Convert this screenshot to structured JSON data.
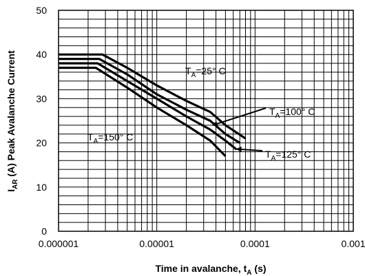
{
  "chart_data": {
    "type": "line",
    "xscale": "log",
    "xlim": [
      1e-06,
      0.001
    ],
    "ylim": [
      0,
      50
    ],
    "xlabel_parts": [
      "Time in avalanche, t",
      "A",
      " (s)"
    ],
    "ylabel_parts": [
      "I",
      "AR",
      " (A) Peak Avalanche Current"
    ],
    "x_ticks": [
      {
        "value": 1e-06,
        "label": "0.000001"
      },
      {
        "value": 1e-05,
        "label": "0.00001"
      },
      {
        "value": 0.0001,
        "label": "0.0001"
      },
      {
        "value": 0.001,
        "label": "0.001"
      }
    ],
    "y_ticks": [
      {
        "value": 0,
        "label": "0"
      },
      {
        "value": 10,
        "label": "10"
      },
      {
        "value": 20,
        "label": "20"
      },
      {
        "value": 30,
        "label": "30"
      },
      {
        "value": 40,
        "label": "40"
      },
      {
        "value": 50,
        "label": "50"
      }
    ],
    "grid": true,
    "series": [
      {
        "name": "TA=25° C",
        "x": [
          1e-06,
          2.8e-06,
          5e-06,
          1e-05,
          2e-05,
          3.5e-05,
          5e-05,
          8e-05
        ],
        "y": [
          40,
          40,
          37,
          33,
          29.5,
          27,
          24,
          21
        ]
      },
      {
        "name": "TA=100° C",
        "x": [
          1e-06,
          2.6e-06,
          5e-06,
          1e-05,
          2e-05,
          3.5e-05,
          5e-05,
          7e-05
        ],
        "y": [
          39,
          39,
          35.5,
          31,
          27.5,
          25,
          22,
          20
        ]
      },
      {
        "name": "TA=125° C",
        "x": [
          1e-06,
          2.5e-06,
          5e-06,
          1e-05,
          2e-05,
          3.5e-05,
          5e-05,
          6.5e-05
        ],
        "y": [
          38,
          38,
          34,
          30,
          26,
          23,
          20.5,
          18.5
        ]
      },
      {
        "name": "TA=150° C",
        "x": [
          1e-06,
          2.4e-06,
          5e-06,
          1e-05,
          2e-05,
          3.5e-05,
          5e-05
        ],
        "y": [
          37,
          37,
          32.5,
          28,
          24,
          20.5,
          17
        ]
      }
    ],
    "annotations": [
      {
        "parts": [
          "T",
          "A",
          "=25° C"
        ]
      },
      {
        "parts": [
          "T",
          "A",
          "=100° C"
        ]
      },
      {
        "parts": [
          "T",
          "A",
          "=125° C"
        ]
      },
      {
        "parts": [
          "T",
          "A",
          "=150° C"
        ]
      }
    ]
  }
}
